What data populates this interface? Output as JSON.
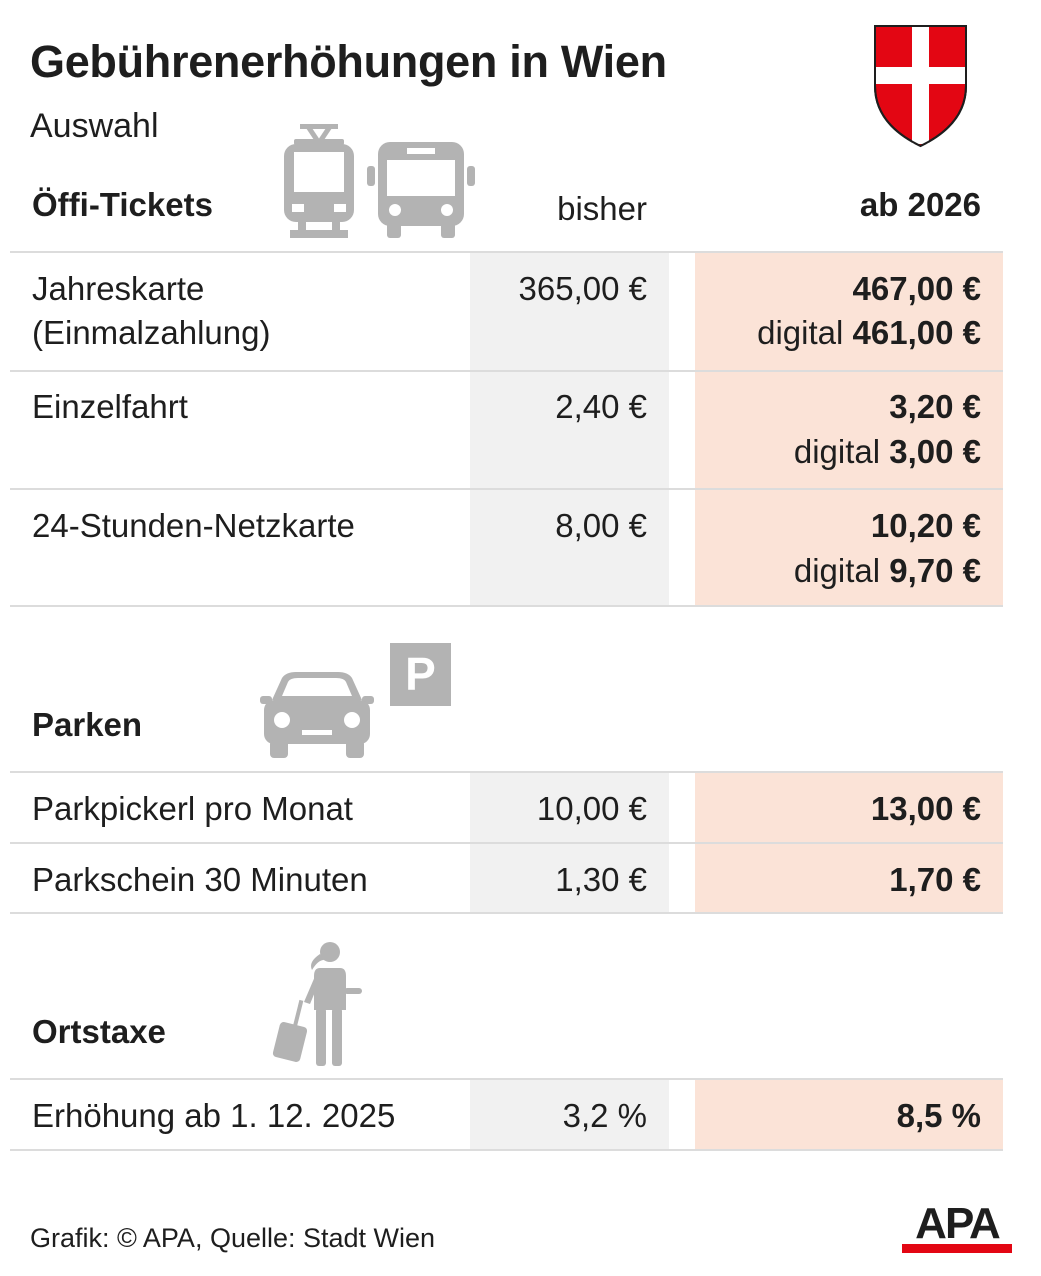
{
  "header": {
    "title": "Gebührenerhöhungen in Wien",
    "subtitle": "Auswahl"
  },
  "columns": {
    "old": "bisher",
    "new": "ab 2026"
  },
  "sections": {
    "oeffi": {
      "title": "Öffi-Tickets",
      "icons": [
        "tram-icon",
        "bus-icon"
      ],
      "rows": [
        {
          "label_1": "Jahreskarte",
          "label_2": "(Einmalzahlung)",
          "old": "365,00 €",
          "new": "467,00 €",
          "digital_prefix": "digital",
          "digital_value": "461,00 €"
        },
        {
          "label_1": "Einzelfahrt",
          "old": "2,40 €",
          "new": "3,20 €",
          "digital_prefix": "digital",
          "digital_value": "3,00 €"
        },
        {
          "label_1": "24-Stunden-Netzkarte",
          "old": "8,00 €",
          "new": "10,20 €",
          "digital_prefix": "digital",
          "digital_value": "9,70 €"
        }
      ]
    },
    "parken": {
      "title": "Parken",
      "icons": [
        "car-icon",
        "parking-sign-icon"
      ],
      "parking_sign_letter": "P",
      "rows": [
        {
          "label_1": "Parkpickerl pro Monat",
          "old": "10,00 €",
          "new": "13,00 €"
        },
        {
          "label_1": "Parkschein 30 Minuten",
          "old": "1,30 €",
          "new": "1,70 €"
        }
      ]
    },
    "ortstaxe": {
      "title": "Ortstaxe",
      "icons": [
        "traveler-with-suitcase-icon"
      ],
      "rows": [
        {
          "label_1": "Erhöhung ab 1. 12. 2025",
          "old": "3,2 %",
          "new": "8,5 %"
        }
      ]
    }
  },
  "footer": {
    "credit": "Grafik: © APA, Quelle: Stadt Wien",
    "logo_text": "APA"
  },
  "colors": {
    "new_column_bg": "#fbe3d7",
    "old_column_bg": "#f1f1f1",
    "icon_gray": "#b3b3b3",
    "vienna_red": "#e30613",
    "apa_red": "#e30613",
    "divider": "#dcdcdc"
  }
}
